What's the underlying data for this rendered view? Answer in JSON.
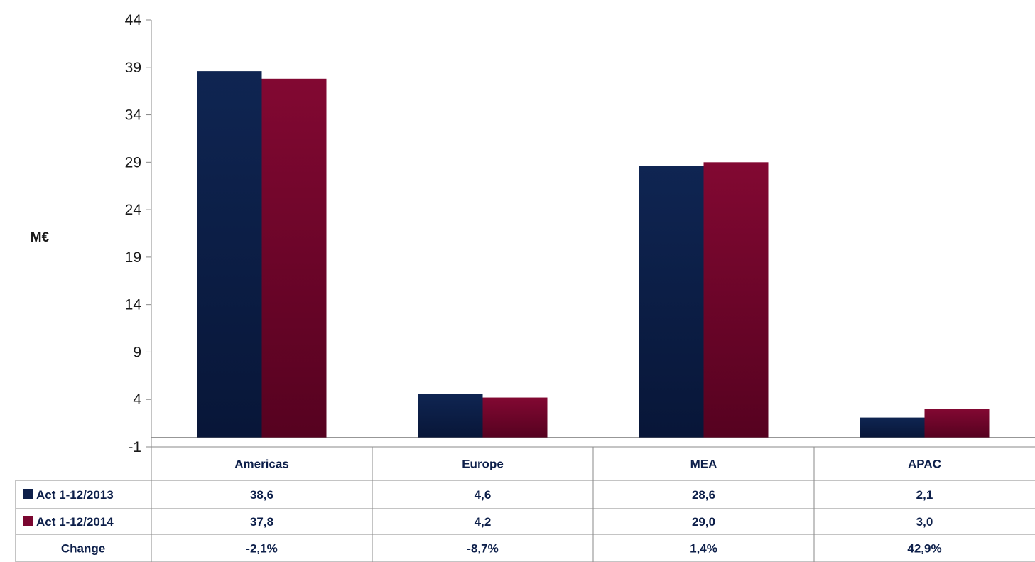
{
  "chart_data": {
    "type": "bar",
    "ylabel": "M€",
    "ylim": [
      -1,
      44
    ],
    "yticks": [
      -1,
      4,
      9,
      14,
      19,
      24,
      29,
      34,
      39,
      44
    ],
    "yticks_text": [
      "-1",
      "4",
      "9",
      "14",
      "19",
      "24",
      "29",
      "34",
      "39",
      "44"
    ],
    "categories": [
      "Americas",
      "Europe",
      "MEA",
      "APAC"
    ],
    "series": [
      {
        "name": "Act 1-12/2013",
        "color": "#0d1f4a",
        "values": [
          38.6,
          4.6,
          28.6,
          2.1
        ],
        "labels": [
          "38,6",
          "4,6",
          "28,6",
          "2,1"
        ]
      },
      {
        "name": "Act 1-12/2014",
        "color": "#7a0630",
        "values": [
          37.8,
          4.2,
          29.0,
          3.0
        ],
        "labels": [
          "37,8",
          "4,2",
          "29,0",
          "3,0"
        ]
      }
    ],
    "change_row": {
      "name": "Change",
      "values": [
        "-2,1%",
        "-8,7%",
        "1,4%",
        "42,9%"
      ]
    },
    "baseline": 0,
    "legend": "table-bottom",
    "grid": false
  }
}
